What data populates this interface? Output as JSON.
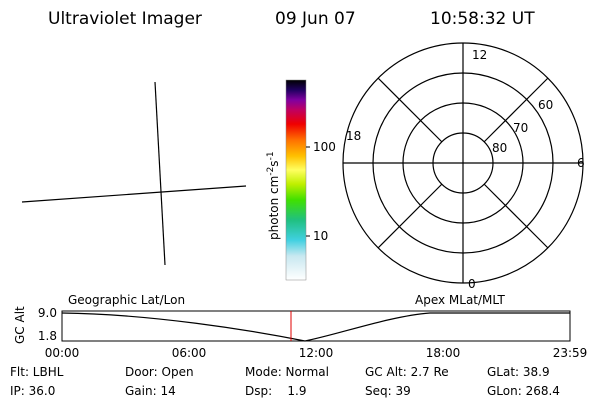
{
  "header": {
    "instrument": "Ultraviolet Imager",
    "date": "09 Jun 07",
    "time": "10:58:32 UT"
  },
  "colorbar": {
    "ticks": [
      "100",
      "10"
    ],
    "unit": [
      "photon cm",
      "-2",
      "s",
      "-1"
    ]
  },
  "polar": {
    "labels": [
      "12",
      "60",
      "70",
      "80",
      "18",
      "6",
      "0"
    ]
  },
  "orbit": {
    "y_label": "GC Alt",
    "y_ticks": [
      "9.0",
      "1.8"
    ],
    "left_title": "Geographic Lat/Lon",
    "right_title": "Apex MLat/MLT",
    "x_ticks": [
      "00:00",
      "06:00",
      "12:00",
      "18:00",
      "23:59"
    ]
  },
  "info": {
    "rows": [
      [
        "Flt: LBHL",
        "Door: Open",
        "Mode: Normal",
        "GC Alt: 2.7 Re",
        "GLat: 38.9"
      ],
      [
        "IP: 36.0",
        "Gain: 14",
        "Dsp:    1.9",
        "Seq: 39",
        "GLon: 268.4"
      ]
    ]
  }
}
